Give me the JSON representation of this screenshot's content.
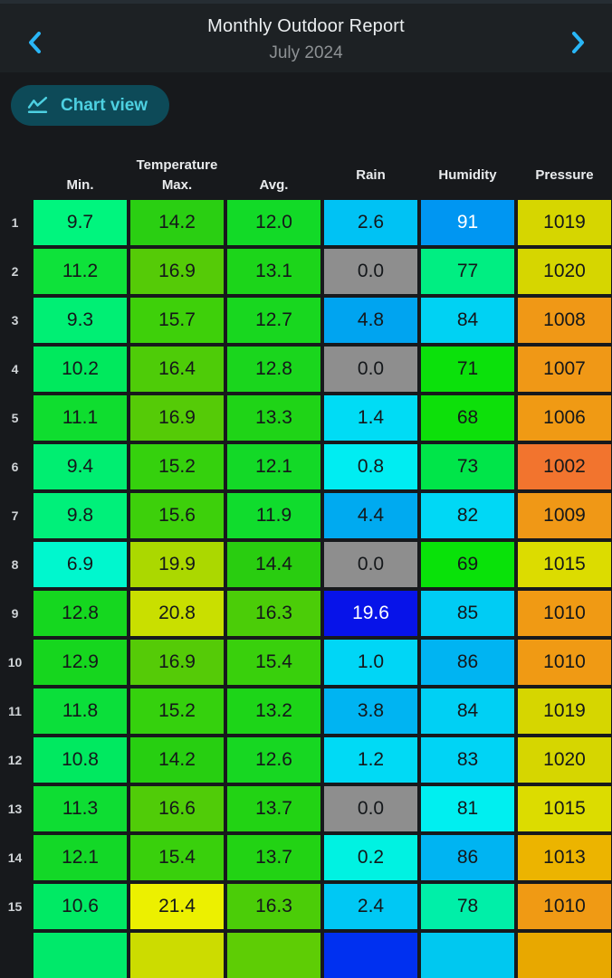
{
  "header": {
    "title": "Monthly Outdoor Report",
    "subtitle": "July 2024"
  },
  "toolbar": {
    "chart_view_label": "Chart view"
  },
  "colors": {
    "accent_blue": "#29b6f6",
    "chart_button_bg": "#0d4a58",
    "chart_button_text": "#4dd0e1",
    "no_rain_gray": "#8e8e8e",
    "header_bg": "#1d2124",
    "body_bg": "#17191c"
  },
  "icons": {
    "prev": "chevron-left-icon",
    "next": "chevron-right-icon",
    "chart": "line-chart-icon"
  },
  "table": {
    "headers": {
      "temperature_group": "Temperature",
      "min": "Min.",
      "max": "Max.",
      "avg": "Avg.",
      "rain": "Rain",
      "humidity": "Humidity",
      "pressure": "Pressure"
    },
    "column_keys": [
      "min",
      "max",
      "avg",
      "rain",
      "humidity",
      "pressure"
    ],
    "rows": [
      {
        "day": "1",
        "cells": [
          {
            "v": "9.7",
            "bg": "#00f57e"
          },
          {
            "v": "14.2",
            "bg": "#2acf12"
          },
          {
            "v": "12.0",
            "bg": "#12da27"
          },
          {
            "v": "2.6",
            "bg": "#00c2f4"
          },
          {
            "v": "91",
            "bg": "#0096f2",
            "fg": "#ffffff"
          },
          {
            "v": "1019",
            "bg": "#d6d600"
          }
        ]
      },
      {
        "day": "2",
        "cells": [
          {
            "v": "11.2",
            "bg": "#0ee23a"
          },
          {
            "v": "16.9",
            "bg": "#55cb07"
          },
          {
            "v": "13.1",
            "bg": "#1cd51a"
          },
          {
            "v": "0.0",
            "bg": "#8e8e8e"
          },
          {
            "v": "77",
            "bg": "#00ee82"
          },
          {
            "v": "1020",
            "bg": "#d6d600"
          }
        ]
      },
      {
        "day": "3",
        "cells": [
          {
            "v": "9.3",
            "bg": "#00ef74"
          },
          {
            "v": "15.7",
            "bg": "#3ed00a"
          },
          {
            "v": "12.7",
            "bg": "#18d71f"
          },
          {
            "v": "4.8",
            "bg": "#00a4f0"
          },
          {
            "v": "84",
            "bg": "#00d2f3"
          },
          {
            "v": "1008",
            "bg": "#f09816"
          }
        ]
      },
      {
        "day": "4",
        "cells": [
          {
            "v": "10.2",
            "bg": "#00e95d"
          },
          {
            "v": "16.4",
            "bg": "#4ecc08"
          },
          {
            "v": "12.8",
            "bg": "#1ad61d"
          },
          {
            "v": "0.0",
            "bg": "#8e8e8e"
          },
          {
            "v": "71",
            "bg": "#0be10b"
          },
          {
            "v": "1007",
            "bg": "#f09816"
          }
        ]
      },
      {
        "day": "5",
        "cells": [
          {
            "v": "11.1",
            "bg": "#0fdd2f"
          },
          {
            "v": "16.9",
            "bg": "#55cb07"
          },
          {
            "v": "13.3",
            "bg": "#1fd417"
          },
          {
            "v": "1.4",
            "bg": "#00dcf5"
          },
          {
            "v": "68",
            "bg": "#0de00a"
          },
          {
            "v": "1006",
            "bg": "#f09a14"
          }
        ]
      },
      {
        "day": "6",
        "cells": [
          {
            "v": "9.4",
            "bg": "#00ee71"
          },
          {
            "v": "15.2",
            "bg": "#35d10d"
          },
          {
            "v": "12.1",
            "bg": "#13d927"
          },
          {
            "v": "0.8",
            "bg": "#00edf2"
          },
          {
            "v": "73",
            "bg": "#00e549"
          },
          {
            "v": "1002",
            "bg": "#f2742e"
          }
        ]
      },
      {
        "day": "7",
        "cells": [
          {
            "v": "9.8",
            "bg": "#00f07a"
          },
          {
            "v": "15.6",
            "bg": "#3dd00b"
          },
          {
            "v": "11.9",
            "bg": "#10dc2d"
          },
          {
            "v": "4.4",
            "bg": "#00aaf0"
          },
          {
            "v": "82",
            "bg": "#00d8f5"
          },
          {
            "v": "1009",
            "bg": "#f09816"
          }
        ]
      },
      {
        "day": "8",
        "cells": [
          {
            "v": "6.9",
            "bg": "#00f7ce"
          },
          {
            "v": "19.9",
            "bg": "#abd800"
          },
          {
            "v": "14.4",
            "bg": "#29cd10"
          },
          {
            "v": "0.0",
            "bg": "#8e8e8e"
          },
          {
            "v": "69",
            "bg": "#09e209"
          },
          {
            "v": "1015",
            "bg": "#dcdc00"
          }
        ]
      },
      {
        "day": "9",
        "cells": [
          {
            "v": "12.8",
            "bg": "#15d71f"
          },
          {
            "v": "20.8",
            "bg": "#c9df00"
          },
          {
            "v": "16.3",
            "bg": "#4bcd08"
          },
          {
            "v": "19.6",
            "bg": "#0713e9",
            "fg": "#ffffff"
          },
          {
            "v": "85",
            "bg": "#00ccf4"
          },
          {
            "v": "1010",
            "bg": "#f09a14"
          }
        ]
      },
      {
        "day": "10",
        "cells": [
          {
            "v": "12.9",
            "bg": "#16d61e"
          },
          {
            "v": "16.9",
            "bg": "#55cb07"
          },
          {
            "v": "15.4",
            "bg": "#39d00c"
          },
          {
            "v": "1.0",
            "bg": "#00d6f6"
          },
          {
            "v": "86",
            "bg": "#00b4f2"
          },
          {
            "v": "1010",
            "bg": "#f09a14"
          }
        ]
      },
      {
        "day": "11",
        "cells": [
          {
            "v": "11.8",
            "bg": "#0bdf3a"
          },
          {
            "v": "15.2",
            "bg": "#35d10d"
          },
          {
            "v": "13.2",
            "bg": "#1dd518"
          },
          {
            "v": "3.8",
            "bg": "#00b4f2"
          },
          {
            "v": "84",
            "bg": "#00d0f4"
          },
          {
            "v": "1019",
            "bg": "#d6d600"
          }
        ]
      },
      {
        "day": "12",
        "cells": [
          {
            "v": "10.8",
            "bg": "#00e960"
          },
          {
            "v": "14.2",
            "bg": "#27cf11"
          },
          {
            "v": "12.6",
            "bg": "#17d722"
          },
          {
            "v": "1.2",
            "bg": "#00daf5"
          },
          {
            "v": "83",
            "bg": "#00d4f5"
          },
          {
            "v": "1020",
            "bg": "#d6d600"
          }
        ]
      },
      {
        "day": "13",
        "cells": [
          {
            "v": "11.3",
            "bg": "#0edd33"
          },
          {
            "v": "16.6",
            "bg": "#50cc08"
          },
          {
            "v": "13.7",
            "bg": "#22d314"
          },
          {
            "v": "0.0",
            "bg": "#8e8e8e"
          },
          {
            "v": "81",
            "bg": "#00eff0"
          },
          {
            "v": "1015",
            "bg": "#dcdc00"
          }
        ]
      },
      {
        "day": "14",
        "cells": [
          {
            "v": "12.1",
            "bg": "#13d827"
          },
          {
            "v": "15.4",
            "bg": "#39d00c"
          },
          {
            "v": "13.7",
            "bg": "#22d314"
          },
          {
            "v": "0.2",
            "bg": "#00f2e2"
          },
          {
            "v": "86",
            "bg": "#00b4f2"
          },
          {
            "v": "1013",
            "bg": "#ecb400"
          }
        ]
      },
      {
        "day": "15",
        "cells": [
          {
            "v": "10.6",
            "bg": "#00ea64"
          },
          {
            "v": "21.4",
            "bg": "#ecf000"
          },
          {
            "v": "16.3",
            "bg": "#4bcd08"
          },
          {
            "v": "2.4",
            "bg": "#00c8f4"
          },
          {
            "v": "78",
            "bg": "#00efa8"
          },
          {
            "v": "1010",
            "bg": "#f09a14"
          }
        ]
      },
      {
        "day": "",
        "partial": true,
        "cells": [
          {
            "v": "",
            "bg": "#00e96a"
          },
          {
            "v": "",
            "bg": "#ccdc00"
          },
          {
            "v": "",
            "bg": "#5ecd05"
          },
          {
            "v": "",
            "bg": "#0030f0"
          },
          {
            "v": "",
            "bg": "#00c8f0"
          },
          {
            "v": "",
            "bg": "#e8a800"
          }
        ]
      }
    ]
  }
}
